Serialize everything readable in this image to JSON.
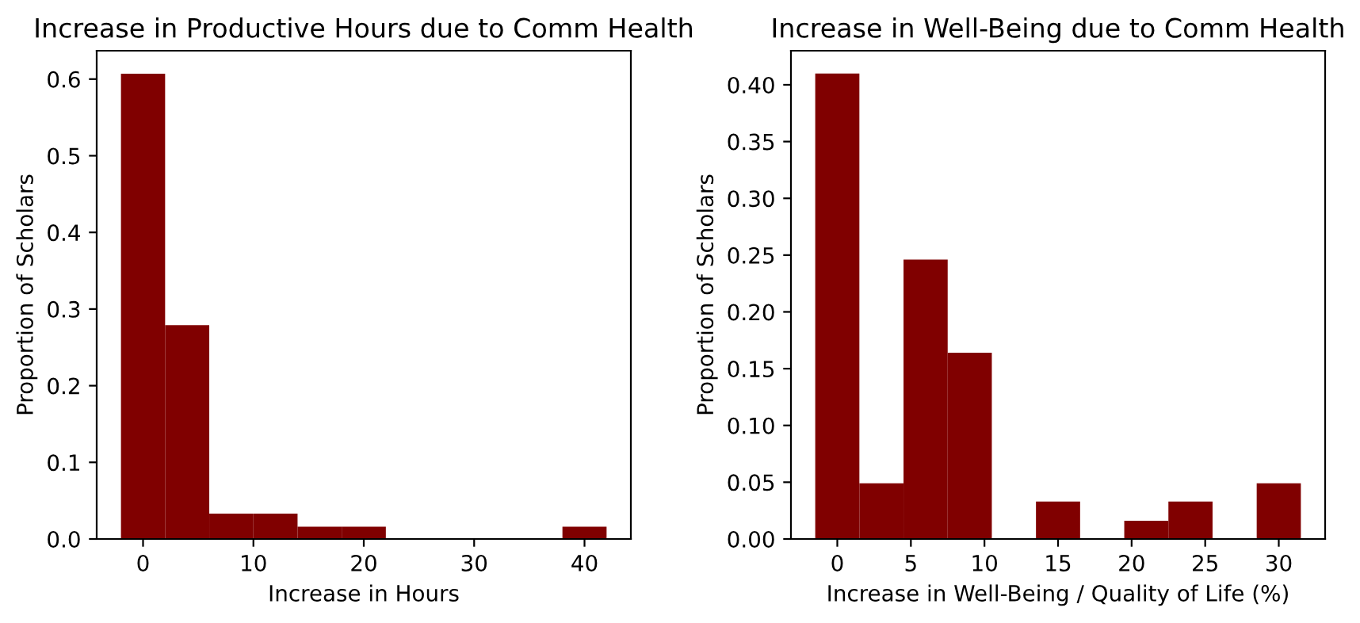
{
  "chart_data": [
    {
      "type": "histogram",
      "title": "Increase in Productive Hours due to Comm Health",
      "xlabel": "Increase in Hours",
      "ylabel": "Proportion of Scholars",
      "color": "#800000",
      "bins": [
        -2,
        2,
        6,
        10,
        14,
        18,
        22,
        26,
        30,
        34,
        38,
        42
      ],
      "values": [
        0.607,
        0.279,
        0.033,
        0.033,
        0.016,
        0.016,
        0,
        0,
        0,
        0,
        0.016
      ],
      "xlim": [
        -4.2,
        44.2
      ],
      "xticks": [
        0,
        10,
        20,
        30,
        40
      ],
      "ylim": [
        0,
        0.637
      ],
      "yticks": [
        {
          "value": 0,
          "label": "0.0"
        },
        0.1,
        0.2,
        0.3,
        0.4,
        0.5,
        0.6
      ],
      "grid": false
    },
    {
      "type": "histogram",
      "title": "Increase in Well-Being due to Comm Health",
      "xlabel": "Increase in Well-Being / Quality of Life (%)",
      "ylabel": "Proportion of Scholars",
      "color": "#800000",
      "bins": [
        -1.5,
        1.5,
        4.5,
        7.5,
        10.5,
        13.5,
        16.5,
        19.5,
        22.5,
        25.5,
        28.5,
        31.5
      ],
      "values": [
        0.41,
        0.049,
        0.246,
        0.164,
        0,
        0.033,
        0,
        0.016,
        0.033,
        0,
        0.049
      ],
      "xlim": [
        -3.15,
        33.15
      ],
      "xticks": [
        0,
        5,
        10,
        15,
        20,
        25,
        30
      ],
      "ylim": [
        0,
        0.43
      ],
      "yticks": [
        {
          "value": 0,
          "label": "0.00"
        },
        {
          "value": 0.05,
          "label": "0.05"
        },
        {
          "value": 0.1,
          "label": "0.10"
        },
        {
          "value": 0.15,
          "label": "0.15"
        },
        {
          "value": 0.2,
          "label": "0.20"
        },
        {
          "value": 0.25,
          "label": "0.25"
        },
        {
          "value": 0.3,
          "label": "0.30"
        },
        {
          "value": 0.35,
          "label": "0.35"
        },
        {
          "value": 0.4,
          "label": "0.40"
        }
      ],
      "grid": false
    }
  ]
}
